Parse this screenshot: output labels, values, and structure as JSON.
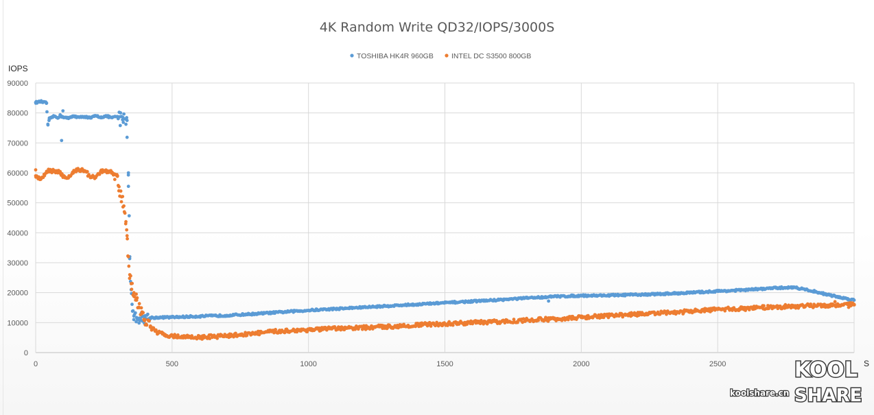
{
  "chart_data": {
    "type": "scatter",
    "title": "4K Random Write QD32/IOPS/3000S",
    "xlabel": "S",
    "ylabel": "IOPS",
    "xlim": [
      0,
      3000
    ],
    "ylim": [
      0,
      90000
    ],
    "xticks": [
      0,
      500,
      1000,
      1500,
      2000,
      2500
    ],
    "yticks": [
      0,
      10000,
      20000,
      30000,
      40000,
      50000,
      60000,
      70000,
      80000,
      90000
    ],
    "grid": true,
    "legend_position": "top-center",
    "series": [
      {
        "name": "TOSHIBA HK4R 960GB",
        "color": "#5b9bd5",
        "x": [
          0,
          20,
          40,
          45,
          50,
          60,
          70,
          80,
          90,
          100,
          120,
          140,
          160,
          180,
          200,
          220,
          240,
          260,
          280,
          300,
          320,
          335,
          345,
          350,
          355,
          360,
          370,
          380,
          400,
          450,
          500,
          600,
          700,
          800,
          900,
          1000,
          1100,
          1200,
          1300,
          1400,
          1500,
          1600,
          1700,
          1800,
          1900,
          2000,
          2100,
          2200,
          2300,
          2400,
          2500,
          2600,
          2700,
          2780,
          2850,
          2900,
          2950,
          3000
        ],
        "y": [
          83500,
          83800,
          83300,
          76000,
          78000,
          78600,
          78900,
          78400,
          79100,
          78700,
          78200,
          79000,
          78500,
          78800,
          78300,
          79000,
          78600,
          78900,
          78400,
          78800,
          78500,
          77500,
          32000,
          21000,
          13800,
          12200,
          11700,
          11500,
          11600,
          11700,
          11800,
          12100,
          12400,
          12900,
          13500,
          14100,
          14600,
          15100,
          15600,
          16100,
          16600,
          17100,
          17600,
          18200,
          18700,
          19000,
          19100,
          19300,
          19600,
          20000,
          20500,
          20900,
          21500,
          21800,
          20500,
          19400,
          18400,
          17500
        ],
        "outliers": [
          [
            95,
            70800
          ],
          [
            100,
            80700
          ],
          [
            310,
            75800
          ],
          [
            340,
            60000
          ],
          [
            340,
            55500
          ],
          [
            1880,
            17200
          ]
        ]
      },
      {
        "name": "INTEL DC S3500 800GB",
        "color": "#ed7d31",
        "x": [
          0,
          20,
          40,
          50,
          70,
          90,
          100,
          120,
          140,
          160,
          180,
          200,
          220,
          240,
          260,
          280,
          300,
          305,
          315,
          325,
          330,
          335,
          340,
          345,
          350,
          360,
          370,
          380,
          390,
          400,
          420,
          450,
          500,
          550,
          600,
          650,
          700,
          800,
          900,
          1000,
          1100,
          1200,
          1300,
          1400,
          1500,
          1600,
          1700,
          1800,
          1900,
          2000,
          2100,
          2200,
          2300,
          2400,
          2500,
          2600,
          2700,
          2800,
          2900,
          3000
        ],
        "y": [
          59000,
          58000,
          60500,
          60800,
          60600,
          60400,
          58500,
          58300,
          60800,
          61000,
          60700,
          58700,
          58400,
          60600,
          60400,
          60200,
          59000,
          54000,
          52000,
          47000,
          43000,
          39000,
          32000,
          26000,
          23000,
          20000,
          17500,
          15000,
          13000,
          11000,
          8500,
          6500,
          5500,
          5200,
          5100,
          5300,
          5600,
          6400,
          7200,
          7600,
          8000,
          8300,
          8700,
          9200,
          9600,
          10000,
          10300,
          10800,
          11200,
          11700,
          12300,
          12800,
          13200,
          13700,
          14400,
          14700,
          15200,
          15500,
          15800,
          16100
        ],
        "outliers": [
          [
            0,
            61000
          ],
          [
            290,
            57800
          ],
          [
            2930,
            17000
          ],
          [
            2980,
            15100
          ]
        ]
      }
    ]
  },
  "watermark": {
    "url_text": "koolshare.cn",
    "logo_line1": "KOOL",
    "logo_line2": "SHARE"
  }
}
